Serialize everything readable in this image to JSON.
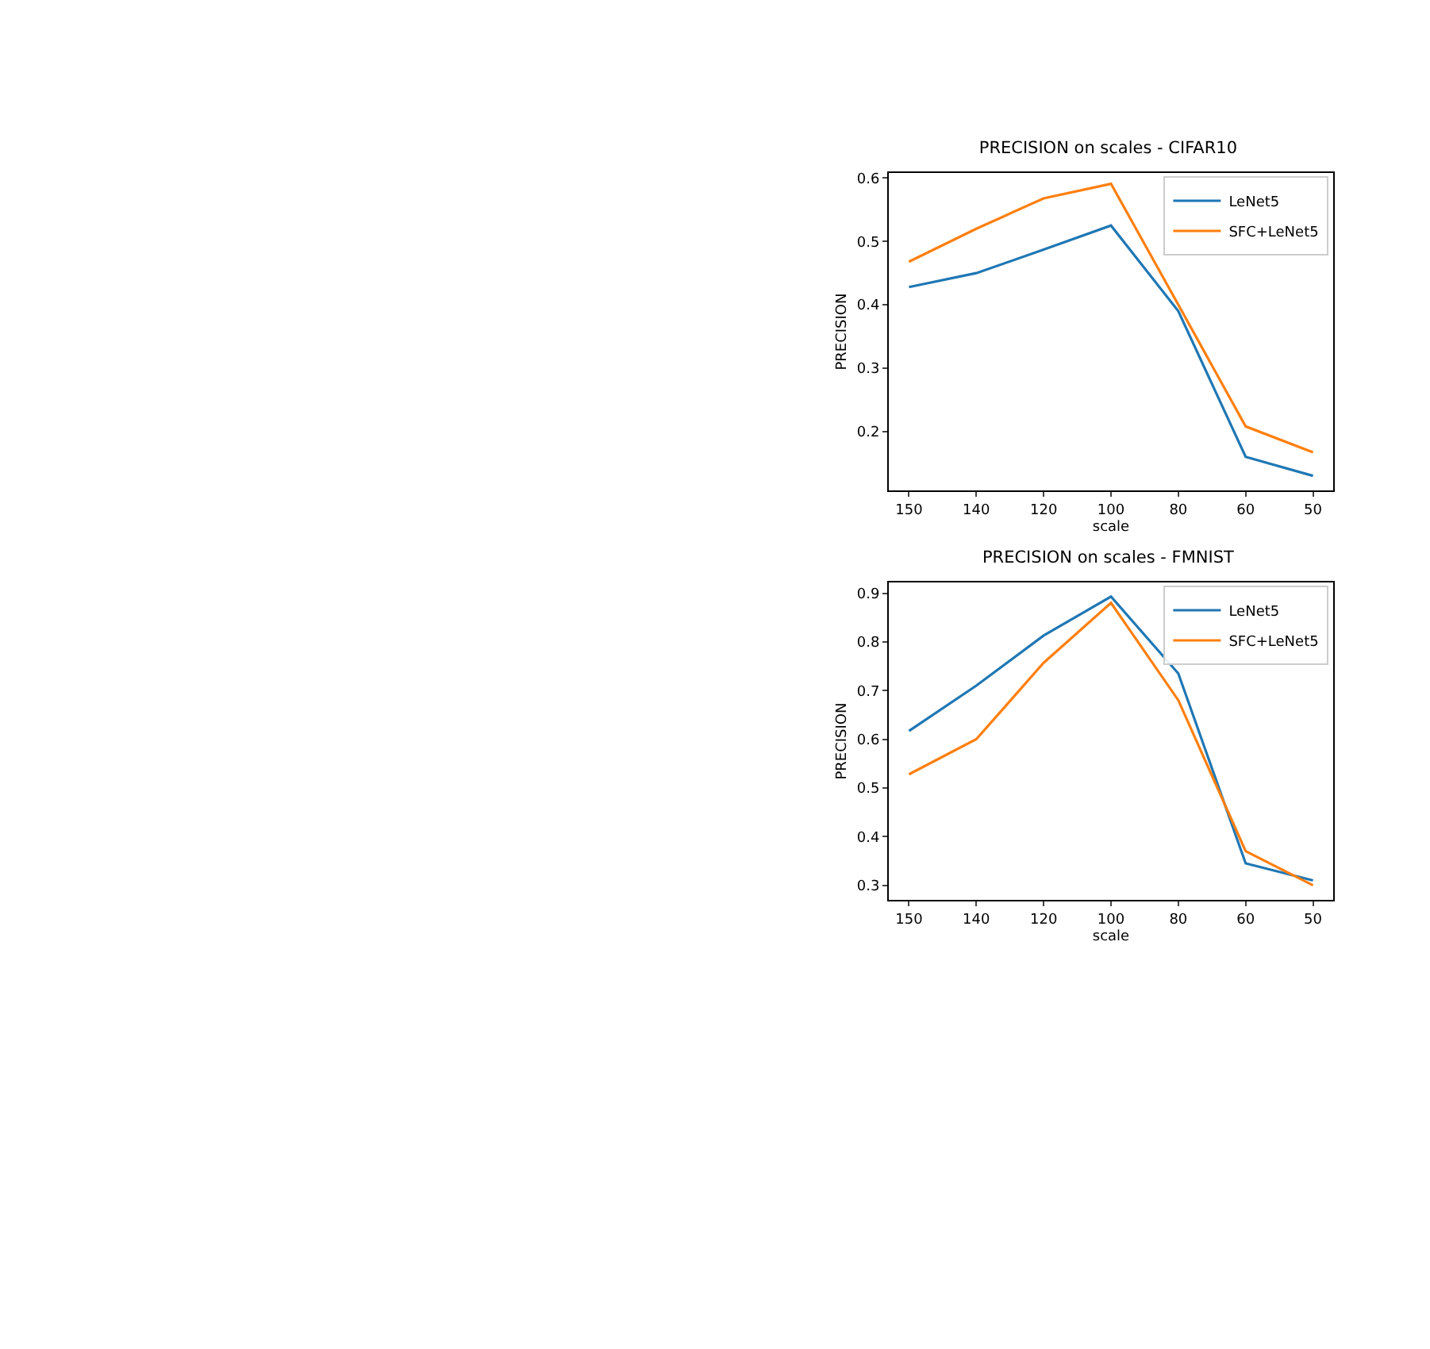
{
  "chart_data": [
    {
      "type": "line",
      "title": "PRECISION on scales - CIFAR10",
      "xlabel": "scale",
      "ylabel": "PRECISION",
      "categories": [
        "150",
        "140",
        "120",
        "100",
        "80",
        "60",
        "50"
      ],
      "ylim": [
        0.107,
        0.608
      ],
      "yticks": [
        0.2,
        0.3,
        0.4,
        0.5,
        0.6
      ],
      "grid": false,
      "legend": "top right",
      "marker": "none",
      "line_style": "solid",
      "series": [
        {
          "name": "LeNet5",
          "color": "#1f77b4",
          "values": [
            0.428,
            0.45,
            0.487,
            0.525,
            0.39,
            0.16,
            0.13
          ]
        },
        {
          "name": "SFC+LeNet5",
          "color": "#ff7f0e",
          "values": [
            0.468,
            0.52,
            0.568,
            0.591,
            0.4,
            0.208,
            0.167
          ]
        }
      ]
    },
    {
      "type": "line",
      "title": "PRECISION on scales - FMNIST",
      "xlabel": "scale",
      "ylabel": "PRECISION",
      "categories": [
        "150",
        "140",
        "120",
        "100",
        "80",
        "60",
        "50"
      ],
      "ylim": [
        0.27,
        0.922
      ],
      "yticks": [
        0.3,
        0.4,
        0.5,
        0.6,
        0.7,
        0.8,
        0.9
      ],
      "grid": false,
      "legend": "top right",
      "marker": "none",
      "line_style": "solid",
      "series": [
        {
          "name": "LeNet5",
          "color": "#1f77b4",
          "values": [
            0.617,
            0.71,
            0.813,
            0.893,
            0.735,
            0.345,
            0.31
          ]
        },
        {
          "name": "SFC+LeNet5",
          "color": "#ff7f0e",
          "values": [
            0.528,
            0.6,
            0.757,
            0.88,
            0.68,
            0.37,
            0.3
          ]
        }
      ]
    }
  ]
}
